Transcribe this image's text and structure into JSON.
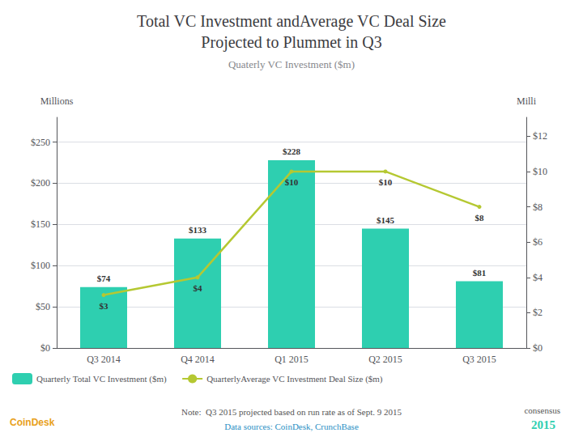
{
  "chart_data": {
    "type": "bar",
    "title": "Total VC Investment andAverage VC Deal Size\nProjected to Plummet in Q3",
    "subtitle": "Quaterly VC Investment ($m)",
    "categories": [
      "Q3 2014",
      "Q4 2014",
      "Q1 2015",
      "Q2 2015",
      "Q3 2015"
    ],
    "series": [
      {
        "name": "Quarterly Total VC Investment ($m)",
        "type": "bar",
        "color": "#2ecfb0",
        "values": [
          74,
          133,
          228,
          145,
          81
        ],
        "value_labels": [
          "$74",
          "$133",
          "$228",
          "$145",
          "$81"
        ]
      },
      {
        "name": "QuarterlyAverage VC Investment Deal Size ($m)",
        "type": "line",
        "axis": "y2",
        "color": "#b5c832",
        "values": [
          3,
          4,
          10,
          10,
          8
        ],
        "value_labels": [
          "$3",
          "$4",
          "$10",
          "$10",
          "$8"
        ]
      }
    ],
    "ylabel": "Millions",
    "y2label": "Milli",
    "ylim": [
      0,
      280
    ],
    "yticks": [
      {
        "value": 0,
        "label": "$0"
      },
      {
        "value": 50,
        "label": "$50"
      },
      {
        "value": 100,
        "label": "$100"
      },
      {
        "value": 150,
        "label": "$150"
      },
      {
        "value": 200,
        "label": "$200"
      },
      {
        "value": 250,
        "label": "$250"
      }
    ],
    "y2lim": [
      0,
      13.07
    ],
    "y2ticks": [
      {
        "value": 0,
        "label": "$0"
      },
      {
        "value": 2,
        "label": "$2"
      },
      {
        "value": 4,
        "label": "$4"
      },
      {
        "value": 6,
        "label": "$6"
      },
      {
        "value": 8,
        "label": "$8"
      },
      {
        "value": 10,
        "label": "$10"
      },
      {
        "value": 12,
        "label": "$12"
      }
    ],
    "grid": true,
    "legend": "lower left",
    "data_labels": true,
    "annotations": [
      "Note:  Q3 2015 projected based on run rate as of Sept. 9 2015",
      "Data sources: CoinDesk, CrunchBase",
      "CoinDesk",
      "consensus",
      "2015"
    ]
  }
}
